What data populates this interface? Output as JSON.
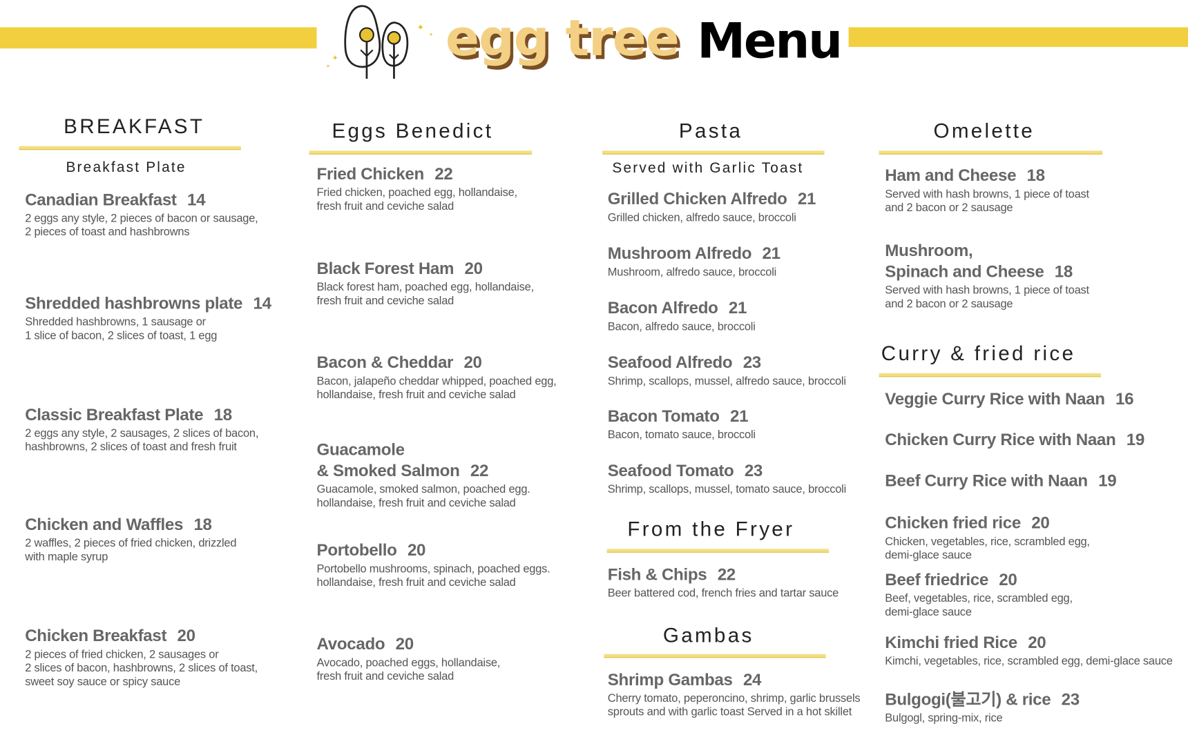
{
  "brand": {
    "name": "egg tree",
    "title": "Menu"
  },
  "colors": {
    "accent": "#f2cf3e",
    "text": "#666666",
    "brand_fill": "#f3d083",
    "brand_shadow": "#7a4f25"
  },
  "sections": {
    "breakfast": {
      "title": "BREAKFAST",
      "subtitle": "Breakfast Plate"
    },
    "benedict": {
      "title": "Eggs Benedict"
    },
    "pasta": {
      "title": "Pasta",
      "subtitle": "Served with Garlic Toast"
    },
    "omelette": {
      "title": "Omelette"
    },
    "fryer": {
      "title": "From the Fryer"
    },
    "gambas": {
      "title": "Gambas"
    },
    "curry": {
      "title": "Curry & fried rice"
    }
  },
  "items": [
    {
      "name": [
        "Canadian Breakfast"
      ],
      "price": "14",
      "desc": [
        "2 eggs any style, 2 pieces of bacon or sausage,",
        "2 pieces of toast and hashbrowns"
      ]
    },
    {
      "name": [
        "Shredded hashbrowns plate"
      ],
      "price": "14",
      "desc": [
        "Shredded hashbrowns, 1 sausage or",
        "1 slice of bacon, 2 slices of toast, 1 egg"
      ]
    },
    {
      "name": [
        "Classic Breakfast Plate"
      ],
      "price": "18",
      "desc": [
        "2 eggs any style, 2 sausages, 2 slices of bacon,",
        "hashbrowns, 2 slices of toast and fresh fruit"
      ]
    },
    {
      "name": [
        "Chicken and Waffles"
      ],
      "price": "18",
      "desc": [
        "2 waffles, 2 pieces of fried chicken, drizzled",
        "with maple syrup"
      ]
    },
    {
      "name": [
        "Chicken Breakfast"
      ],
      "price": "20",
      "desc": [
        "2 pieces of fried chicken, 2 sausages or",
        "2 slices of bacon, hashbrowns, 2 slices of toast,",
        "sweet soy sauce or spicy sauce"
      ]
    },
    {
      "name": [
        "Fried Chicken"
      ],
      "price": "22",
      "desc": [
        "Fried chicken, poached egg, hollandaise,",
        "fresh fruit and ceviche salad"
      ]
    },
    {
      "name": [
        "Black Forest Ham"
      ],
      "price": "20",
      "desc": [
        "Black forest ham, poached egg, hollandaise,",
        "fresh fruit and ceviche salad"
      ]
    },
    {
      "name": [
        "Bacon & Cheddar"
      ],
      "price": "20",
      "desc": [
        "Bacon, jalapeño cheddar whipped, poached egg,",
        "hollandaise, fresh fruit and ceviche salad"
      ]
    },
    {
      "name": [
        "Guacamole",
        "& Smoked Salmon"
      ],
      "price": "22",
      "desc": [
        "Guacamole, smoked salmon, poached egg.",
        "hollandaise, fresh fruit and ceviche salad"
      ]
    },
    {
      "name": [
        "Portobello"
      ],
      "price": "20",
      "desc": [
        "Portobello mushrooms, spinach, poached eggs.",
        "hollandaise, fresh fruit and ceviche salad"
      ]
    },
    {
      "name": [
        "Avocado"
      ],
      "price": "20",
      "desc": [
        "Avocado, poached eggs, hollandaise,",
        "fresh fruit and ceviche salad"
      ]
    },
    {
      "name": [
        "Grilled Chicken Alfredo"
      ],
      "price": "21",
      "desc": [
        "Grilled chicken, alfredo sauce, broccoli"
      ]
    },
    {
      "name": [
        "Mushroom Alfredo"
      ],
      "price": "21",
      "desc": [
        "Mushroom, alfredo sauce,  broccoli"
      ]
    },
    {
      "name": [
        "Bacon Alfredo"
      ],
      "price": "21",
      "desc": [
        "Bacon, alfredo sauce, broccoli"
      ]
    },
    {
      "name": [
        "Seafood Alfredo"
      ],
      "price": "23",
      "desc": [
        "Shrimp, scallops, mussel, alfredo sauce, broccoli"
      ]
    },
    {
      "name": [
        "Bacon Tomato"
      ],
      "price": "21",
      "desc": [
        "Bacon, tomato sauce, broccoli"
      ]
    },
    {
      "name": [
        "Seafood Tomato"
      ],
      "price": "23",
      "desc": [
        "Shrimp, scallops, mussel, tomato sauce, broccoli"
      ]
    },
    {
      "name": [
        "Fish & Chips"
      ],
      "price": "22",
      "desc": [
        " Beer battered cod, french fries and tartar sauce"
      ]
    },
    {
      "name": [
        "Shrimp Gambas"
      ],
      "price": "24",
      "desc": [
        "Cherry tomato, peperoncino, shrimp, garlic  brussels",
        "sprouts and with garlic toast Served in a hot skillet"
      ]
    },
    {
      "name": [
        "Ham and Cheese"
      ],
      "price": "18",
      "desc": [
        "Served with hash browns, 1 piece of toast",
        "and 2 bacon or 2 sausage"
      ]
    },
    {
      "name": [
        "Mushroom,",
        "Spinach and Cheese"
      ],
      "price": "18",
      "desc": [
        "Served with hash browns, 1 piece of toast",
        "and 2 bacon or 2 sausage"
      ]
    },
    {
      "name": [
        "Veggie Curry Rice with Naan"
      ],
      "price": "16",
      "desc": []
    },
    {
      "name": [
        "Chicken Curry Rice with Naan"
      ],
      "price": "19",
      "desc": []
    },
    {
      "name": [
        "Beef Curry Rice with Naan"
      ],
      "price": "19",
      "desc": []
    },
    {
      "name": [
        "Chicken fried rice"
      ],
      "price": "20",
      "desc": [
        "Chicken, vegetables, rice, scrambled egg,",
        "demi-glace sauce"
      ]
    },
    {
      "name": [
        "Beef friedrice"
      ],
      "price": "20",
      "desc": [
        "Beef, vegetables, rice, scrambled egg,",
        "demi-glace sauce"
      ]
    },
    {
      "name": [
        "Kimchi fried Rice"
      ],
      "price": "20",
      "desc": [
        "Kimchi, vegetables, rice, scrambled egg, demi-glace sauce"
      ]
    },
    {
      "name": [
        "Bulgogi(불고기) & rice"
      ],
      "price": "23",
      "desc": [
        "Bulgogl, spring-mix, rice"
      ]
    }
  ]
}
